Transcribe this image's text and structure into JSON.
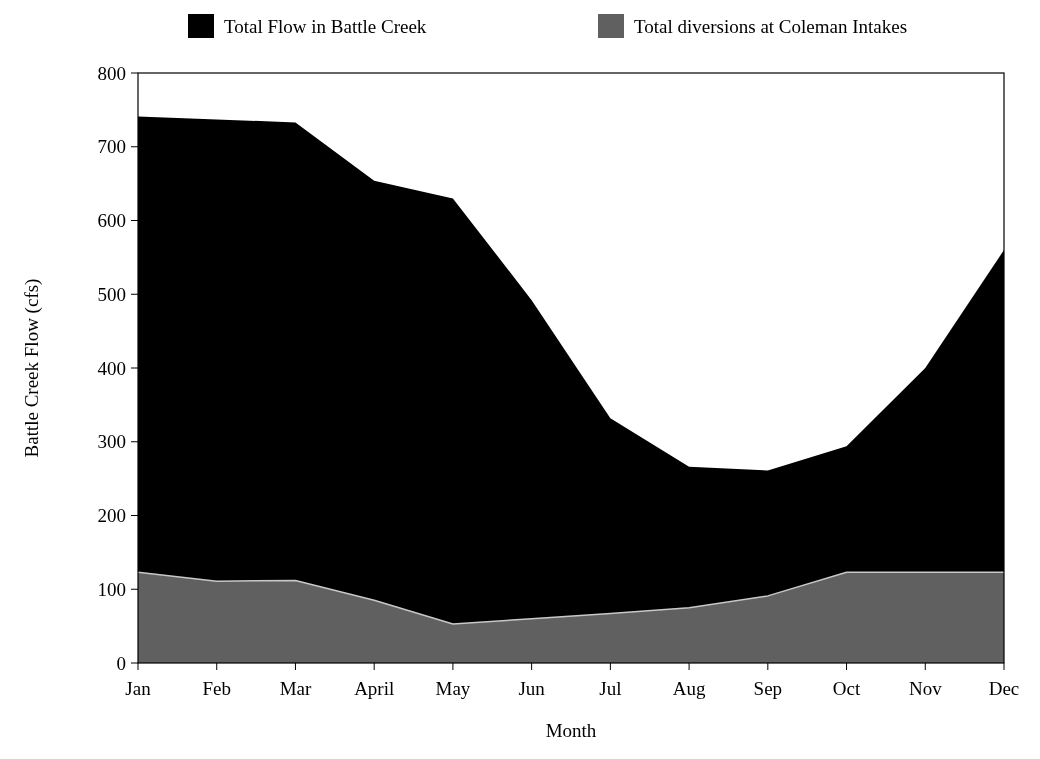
{
  "chart_data": {
    "type": "area",
    "xlabel": "Month",
    "ylabel": "Battle Creek Flow (cfs)",
    "categories": [
      "Jan",
      "Feb",
      "Mar",
      "April",
      "May",
      "Jun",
      "Jul",
      "Aug",
      "Sep",
      "Oct",
      "Nov",
      "Dec"
    ],
    "series": [
      {
        "name": "Total Flow in Battle Creek",
        "color": "#000000",
        "values": [
          741,
          737,
          733,
          654,
          630,
          492,
          332,
          266,
          261,
          294,
          400,
          560
        ]
      },
      {
        "name": "Total diversions at Coleman Intakes",
        "color": "#606060",
        "values": [
          123,
          111,
          112,
          85,
          53,
          60,
          67,
          75,
          91,
          123,
          123,
          123
        ]
      }
    ],
    "ylim": [
      0,
      800
    ],
    "yticks": [
      0,
      100,
      200,
      300,
      400,
      500,
      600,
      700,
      800
    ],
    "legend": "top"
  }
}
